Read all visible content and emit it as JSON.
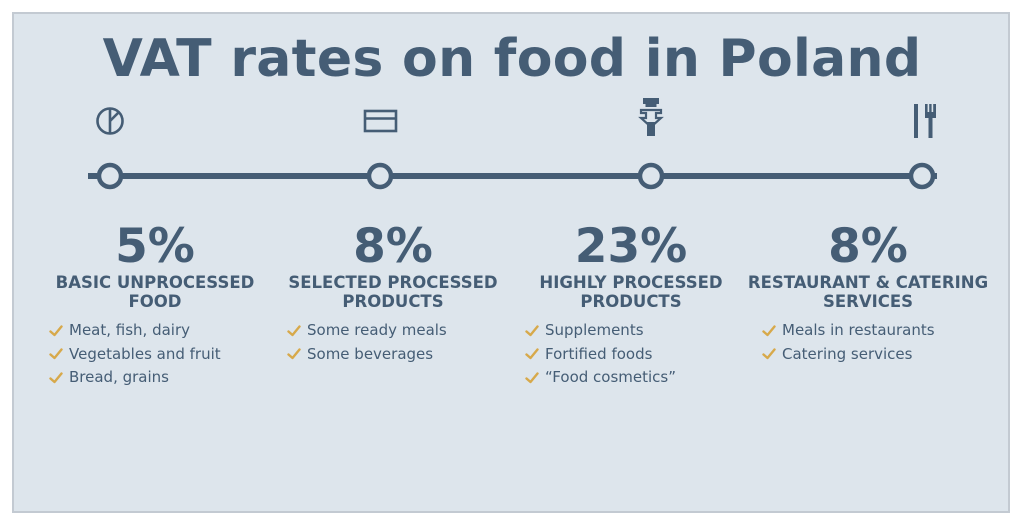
{
  "title": "VAT rates on food in Poland",
  "colors": {
    "primary": "#455d75",
    "check": "#d7a94b",
    "background": "#dde5ec",
    "border": "#c3cad2"
  },
  "categories": [
    {
      "rate": "5%",
      "heading_line1": "BASIC UNPROCESSED",
      "heading_line2": "FOOD",
      "icon": "pie-icon",
      "items": [
        "Meat, fish, dairy",
        "Vegetables and fruit",
        "Bread, grains"
      ]
    },
    {
      "rate": "8%",
      "heading_line1": "SELECTED PROCESSED",
      "heading_line2": "PRODUCTS",
      "icon": "box-icon",
      "items": [
        "Some ready meals",
        "Some beverages"
      ]
    },
    {
      "rate": "23%",
      "heading_line1": "HIGHLY PROCESSED",
      "heading_line2": "PRODUCTS",
      "icon": "bottle-icon",
      "items": [
        "Supplements",
        "Fortified foods",
        "“Food cosmetics”"
      ]
    },
    {
      "rate": "8%",
      "heading_line1": "RESTAURANT & CATERING",
      "heading_line2": "SERVICES",
      "icon": "utensils-icon",
      "items": [
        "Meals in restaurants",
        "Catering services"
      ]
    }
  ]
}
